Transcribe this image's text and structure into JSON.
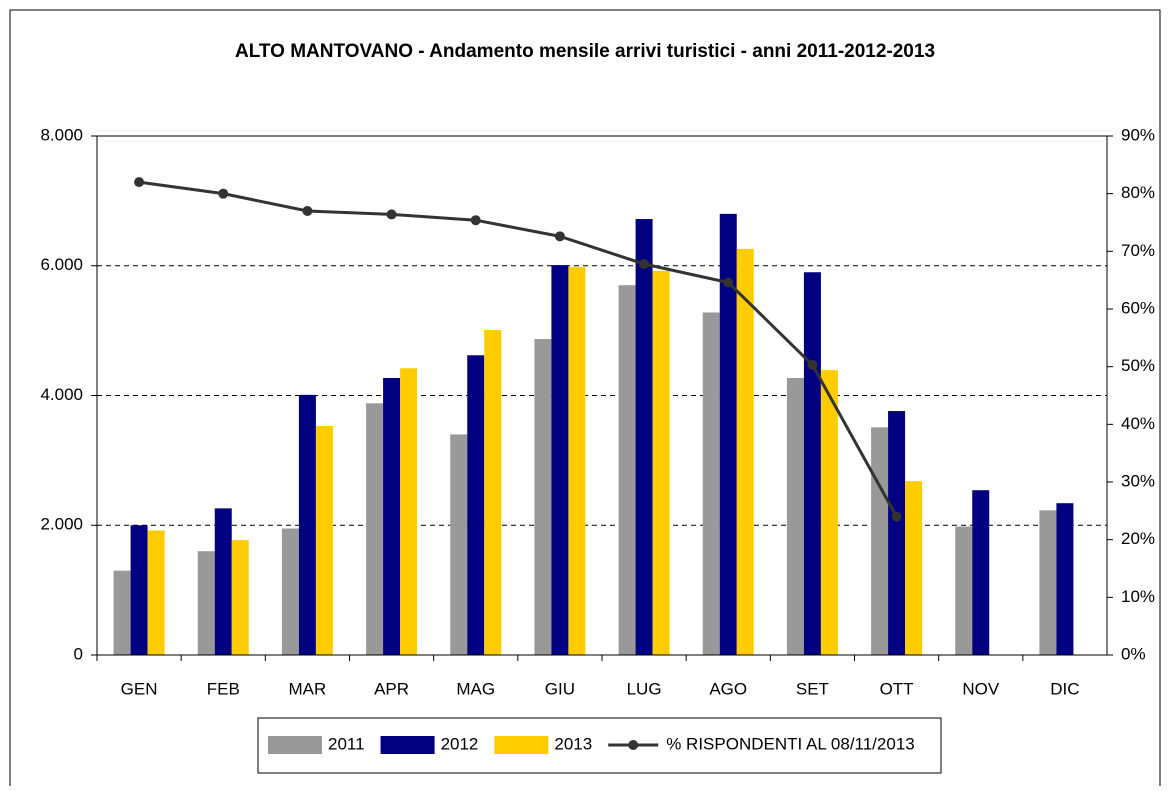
{
  "chart_data": {
    "type": "bar",
    "title": "ALTO MANTOVANO - Andamento mensile arrivi turistici - anni 2011-2012-2013",
    "categories": [
      "GEN",
      "FEB",
      "MAR",
      "APR",
      "MAG",
      "GIU",
      "LUG",
      "AGO",
      "SET",
      "OTT",
      "NOV",
      "DIC"
    ],
    "series": [
      {
        "name": "2011",
        "color": "#999999",
        "values": [
          1300,
          1600,
          1950,
          3880,
          3400,
          4870,
          5700,
          5280,
          4270,
          3510,
          1980,
          2230
        ]
      },
      {
        "name": "2012",
        "color": "#000080",
        "values": [
          2000,
          2260,
          4010,
          4270,
          4620,
          6010,
          6720,
          6800,
          5900,
          3760,
          2540,
          2340
        ]
      },
      {
        "name": "2013",
        "color": "#ffcc00",
        "values": [
          1920,
          1770,
          3530,
          4420,
          5010,
          5980,
          5920,
          6260,
          4390,
          2680,
          null,
          null
        ]
      },
      {
        "name": "% RISPONDENTI AL 08/11/2013",
        "color": "#333333",
        "type": "line",
        "axis": "y2",
        "values": [
          82,
          80,
          77,
          76.4,
          75.4,
          72.6,
          67.8,
          64.6,
          50.3,
          24,
          null,
          null
        ]
      }
    ],
    "ylim": [
      0,
      8000
    ],
    "yticks": [
      0,
      {
        "value": 2000,
        "label": "2.000"
      },
      {
        "value": 4000,
        "label": "4.000"
      },
      {
        "value": 6000,
        "label": "6.000"
      },
      {
        "value": 8000,
        "label": "8.000"
      }
    ],
    "y2lim": [
      0,
      90
    ],
    "y2ticks": [
      {
        "value": 0,
        "label": "0%"
      },
      {
        "value": 10,
        "label": "10%"
      },
      {
        "value": 20,
        "label": "20%"
      },
      {
        "value": 30,
        "label": "30%"
      },
      {
        "value": 40,
        "label": "40%"
      },
      {
        "value": 50,
        "label": "50%"
      },
      {
        "value": 60,
        "label": "60%"
      },
      {
        "value": 70,
        "label": "70%"
      },
      {
        "value": 80,
        "label": "80%"
      },
      {
        "value": 90,
        "label": "90%"
      }
    ],
    "grid": true,
    "legend": "bottom"
  }
}
